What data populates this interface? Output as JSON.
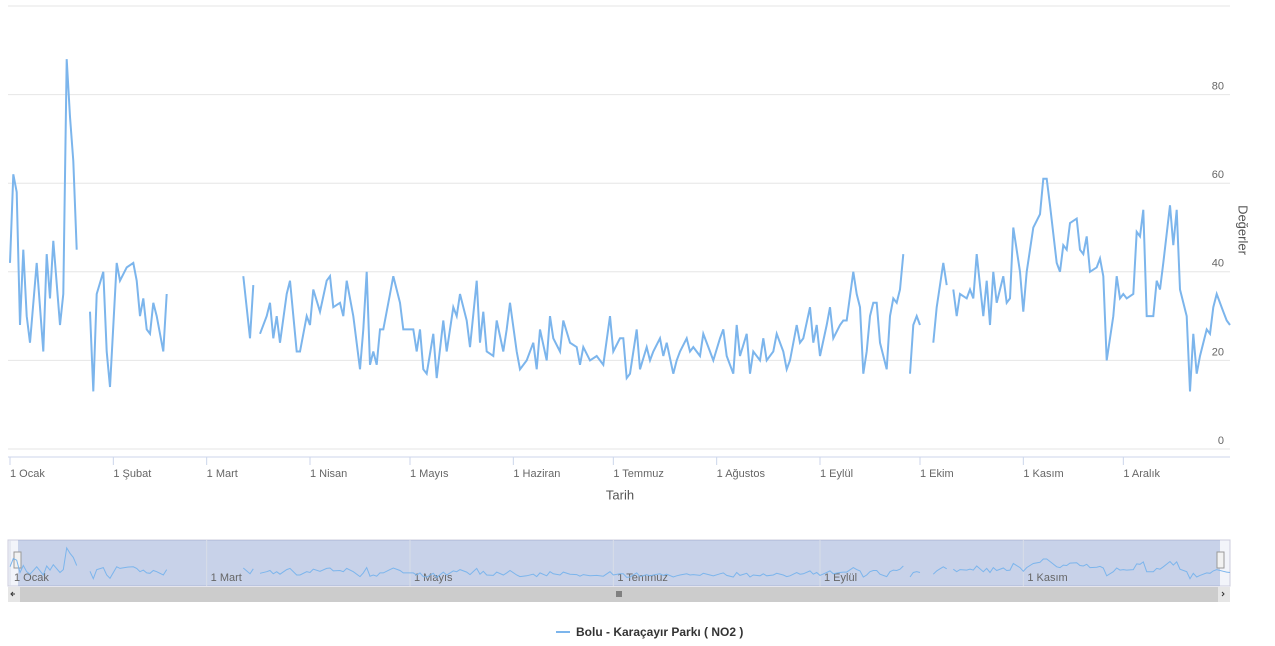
{
  "chart_data": {
    "type": "line",
    "x_label": "Tarih",
    "y_label": "Değerler",
    "xlim": [
      0,
      366
    ],
    "ylim": [
      0,
      100
    ],
    "xticks": [
      {
        "value": 0,
        "label": "1 Ocak"
      },
      {
        "value": 31,
        "label": "1 Şubat"
      },
      {
        "value": 59,
        "label": "1 Mart"
      },
      {
        "value": 90,
        "label": "1 Nisan"
      },
      {
        "value": 120,
        "label": "1 Mayıs"
      },
      {
        "value": 151,
        "label": "1 Haziran"
      },
      {
        "value": 181,
        "label": "1 Temmuz"
      },
      {
        "value": 212,
        "label": "1 Ağustos"
      },
      {
        "value": 243,
        "label": "1 Eylül"
      },
      {
        "value": 273,
        "label": "1 Ekim"
      },
      {
        "value": 304,
        "label": "1 Kasım"
      },
      {
        "value": 334,
        "label": "1 Aralık"
      }
    ],
    "yticks": [
      0,
      20,
      40,
      60,
      80
    ],
    "grid": true,
    "series": [
      {
        "name": "Bolu - Karaçayır Parkı ( NO2 )",
        "color": "#7cb5ec",
        "x": [
          0,
          1,
          2,
          3,
          4,
          5,
          6,
          8,
          10,
          11,
          12,
          13,
          15,
          16,
          17,
          18,
          19,
          20,
          22,
          24,
          25,
          26,
          28,
          29,
          30,
          32,
          33,
          35,
          37,
          38,
          39,
          40,
          41,
          42,
          43,
          44,
          46,
          47,
          55,
          70,
          72,
          73,
          74,
          75,
          77,
          78,
          79,
          80,
          81,
          83,
          84,
          86,
          87,
          89,
          90,
          91,
          93,
          95,
          96,
          97,
          99,
          100,
          101,
          103,
          105,
          106,
          107,
          108,
          109,
          110,
          111,
          112,
          114,
          115,
          117,
          118,
          119,
          121,
          122,
          123,
          124,
          125,
          127,
          128,
          130,
          131,
          133,
          134,
          135,
          137,
          138,
          140,
          141,
          142,
          143,
          145,
          146,
          148,
          149,
          150,
          152,
          153,
          155,
          157,
          158,
          159,
          161,
          162,
          163,
          165,
          166,
          168,
          170,
          171,
          172,
          174,
          176,
          178,
          180,
          181,
          183,
          184,
          185,
          186,
          188,
          189,
          191,
          192,
          193,
          195,
          196,
          197,
          199,
          200,
          201,
          203,
          204,
          205,
          207,
          208,
          210,
          211,
          213,
          214,
          215,
          217,
          218,
          219,
          221,
          222,
          223,
          225,
          226,
          227,
          229,
          230,
          232,
          233,
          234,
          236,
          237,
          238,
          240,
          241,
          242,
          243,
          245,
          246,
          247,
          249,
          250,
          251,
          253,
          254,
          255,
          256,
          257,
          258,
          259,
          260,
          261,
          263,
          264,
          265,
          266,
          267,
          268,
          269,
          270,
          271,
          272,
          273,
          274,
          277,
          278,
          279,
          280,
          281,
          282,
          283,
          284,
          285,
          287,
          288,
          289,
          290,
          292,
          293,
          294,
          295,
          296,
          298,
          299,
          300,
          301,
          303,
          304,
          305,
          306,
          307,
          309,
          310,
          311,
          312,
          314,
          315,
          316,
          317,
          318,
          320,
          321,
          322,
          323,
          324,
          326,
          327,
          328,
          329,
          331,
          332,
          333,
          334,
          335,
          337,
          338,
          339,
          340,
          341,
          343,
          344,
          345,
          346,
          348,
          349,
          350,
          351,
          353,
          354,
          355,
          356,
          357,
          359,
          360,
          361,
          362,
          364,
          365,
          366
        ],
        "values": [
          42,
          62,
          58,
          28,
          45,
          30,
          24,
          42,
          22,
          44,
          34,
          47,
          28,
          35,
          88,
          75,
          65,
          45,
          null,
          31,
          13,
          35,
          40,
          22,
          14,
          42,
          38,
          41,
          42,
          38,
          30,
          34,
          27,
          26,
          33,
          30,
          22,
          35,
          null,
          39,
          25,
          37,
          null,
          26,
          30,
          33,
          25,
          30,
          24,
          35,
          38,
          22,
          22,
          30,
          28,
          36,
          31,
          38,
          39,
          32,
          33,
          30,
          38,
          30,
          18,
          27,
          40,
          19,
          22,
          19,
          27,
          27,
          35,
          39,
          33,
          27,
          27,
          27,
          22,
          27,
          18,
          17,
          26,
          16,
          29,
          22,
          32,
          30,
          35,
          29,
          23,
          38,
          24,
          31,
          22,
          21,
          29,
          22,
          27,
          33,
          22,
          18,
          20,
          24,
          18,
          27,
          20,
          30,
          25,
          22,
          29,
          24,
          23,
          19,
          23,
          20,
          21,
          19,
          30,
          22,
          25,
          25,
          16,
          17,
          27,
          18,
          23,
          20,
          22,
          25,
          21,
          24,
          17,
          20,
          22,
          25,
          22,
          23,
          21,
          26,
          22,
          20,
          25,
          27,
          21,
          17,
          28,
          21,
          26,
          17,
          22,
          20,
          25,
          20,
          22,
          26,
          22,
          18,
          20,
          28,
          24,
          25,
          32,
          24,
          28,
          21,
          28,
          32,
          25,
          28,
          29,
          29,
          40,
          35,
          32,
          17,
          22,
          30,
          33,
          33,
          24,
          18,
          30,
          34,
          33,
          36,
          44,
          null,
          17,
          28,
          30,
          28,
          null,
          24,
          32,
          37,
          42,
          37,
          null,
          36,
          30,
          35,
          34,
          36,
          34,
          44,
          30,
          38,
          28,
          40,
          33,
          39,
          33,
          34,
          50,
          40,
          31,
          40,
          45,
          50,
          53,
          61,
          61,
          55,
          42,
          40,
          46,
          45,
          51,
          52,
          45,
          44,
          48,
          40,
          41,
          43,
          39,
          20,
          30,
          39,
          34,
          35,
          34,
          35,
          49,
          48,
          54,
          30,
          30,
          38,
          36,
          42,
          55,
          46,
          54,
          36,
          30,
          13,
          26,
          17,
          21,
          27,
          26,
          32,
          35,
          31,
          29,
          28
        ]
      }
    ]
  }
}
